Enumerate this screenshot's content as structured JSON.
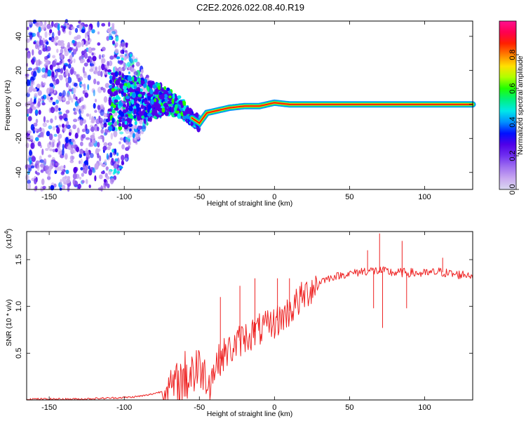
{
  "title": "C2E2.2026.022.08.40.R19",
  "colors": {
    "snr_line": "#ee2222",
    "ridge": "#ff2200",
    "frame": "#000000",
    "colormap": [
      "#d8d8f0",
      "#c8a8f0",
      "#a070f0",
      "#7030f0",
      "#5000e8",
      "#0010ff",
      "#0090ff",
      "#00e8e8",
      "#00f080",
      "#20ff00",
      "#b0ff00",
      "#ffe000",
      "#ff8000",
      "#ff2000",
      "#ff0050",
      "#ff1090"
    ]
  },
  "chart_data": [
    {
      "type": "heatmap",
      "xlabel": "Height of straight line (km)",
      "ylabel": "Frequency (Hz)",
      "xlim": [
        -165,
        132
      ],
      "ylim": [
        -50,
        49
      ],
      "xticks": [
        -150,
        -100,
        -50,
        0,
        50,
        100
      ],
      "yticks": [
        -40,
        -20,
        0,
        20,
        40
      ],
      "colorbar": {
        "label": "Normalized spectral amplitude",
        "range": [
          0.0,
          1.0
        ],
        "ticks": [
          0.0,
          0.2,
          0.4,
          0.6,
          0.8
        ]
      },
      "ridge": [
        {
          "x": -70,
          "y": 2
        },
        {
          "x": -62,
          "y": -2
        },
        {
          "x": -55,
          "y": -8
        },
        {
          "x": -50,
          "y": -11
        },
        {
          "x": -45,
          "y": -5
        },
        {
          "x": -40,
          "y": -4
        },
        {
          "x": -30,
          "y": -2
        },
        {
          "x": -20,
          "y": -1
        },
        {
          "x": -10,
          "y": -1
        },
        {
          "x": 0,
          "y": 1
        },
        {
          "x": 10,
          "y": 0
        },
        {
          "x": 50,
          "y": 0
        },
        {
          "x": 100,
          "y": 0
        },
        {
          "x": 130,
          "y": 0
        }
      ]
    },
    {
      "type": "line",
      "xlabel": "Height of straight line (km)",
      "ylabel": "SNR (10 * v/v)",
      "y_multiplier": "(x10^4)",
      "y_multiplier_base": "(x10",
      "y_multiplier_exp": "4",
      "y_multiplier_close": ")",
      "xlim": [
        -165,
        132
      ],
      "ylim": [
        0,
        1.8
      ],
      "xticks": [
        -150,
        -100,
        -50,
        0,
        50,
        100
      ],
      "yticks": [
        0.5,
        1.0,
        1.5
      ],
      "ytick_labels": [
        "0.5",
        "1.0",
        "1.5"
      ],
      "series": [
        {
          "points": [
            [
              -165,
              0.01
            ],
            [
              -130,
              0.01
            ],
            [
              -110,
              0.02
            ],
            [
              -95,
              0.03
            ],
            [
              -85,
              0.05
            ],
            [
              -75,
              0.09
            ],
            [
              -68,
              0.14
            ],
            [
              -62,
              0.2
            ],
            [
              -57,
              0.28
            ],
            [
              -53,
              0.35
            ],
            [
              -48,
              0.32
            ],
            [
              -43,
              0.2
            ],
            [
              -38,
              0.4
            ],
            [
              -33,
              0.5
            ],
            [
              -28,
              0.55
            ],
            [
              -22,
              0.65
            ],
            [
              -16,
              0.7
            ],
            [
              -10,
              0.75
            ],
            [
              -4,
              0.78
            ],
            [
              2,
              0.85
            ],
            [
              8,
              0.92
            ],
            [
              14,
              1.02
            ],
            [
              20,
              1.12
            ],
            [
              26,
              1.22
            ],
            [
              32,
              1.28
            ],
            [
              40,
              1.32
            ],
            [
              50,
              1.35
            ],
            [
              60,
              1.38
            ],
            [
              70,
              1.38
            ],
            [
              80,
              1.36
            ],
            [
              90,
              1.36
            ],
            [
              100,
              1.35
            ],
            [
              110,
              1.37
            ],
            [
              120,
              1.34
            ],
            [
              132,
              1.34
            ]
          ],
          "spikes": [
            {
              "x": 62,
              "y": 1.6
            },
            {
              "x": 66,
              "y": 0.98
            },
            {
              "x": 70,
              "y": 1.78
            },
            {
              "x": 72,
              "y": 0.77
            },
            {
              "x": 85,
              "y": 1.7
            },
            {
              "x": 88,
              "y": 0.98
            },
            {
              "x": 112,
              "y": 1.52
            },
            {
              "x": -36,
              "y": 1.1
            },
            {
              "x": -23,
              "y": 1.22
            },
            {
              "x": -13,
              "y": 1.3
            },
            {
              "x": 2,
              "y": 1.3
            },
            {
              "x": 10,
              "y": 1.3
            }
          ]
        }
      ]
    }
  ]
}
